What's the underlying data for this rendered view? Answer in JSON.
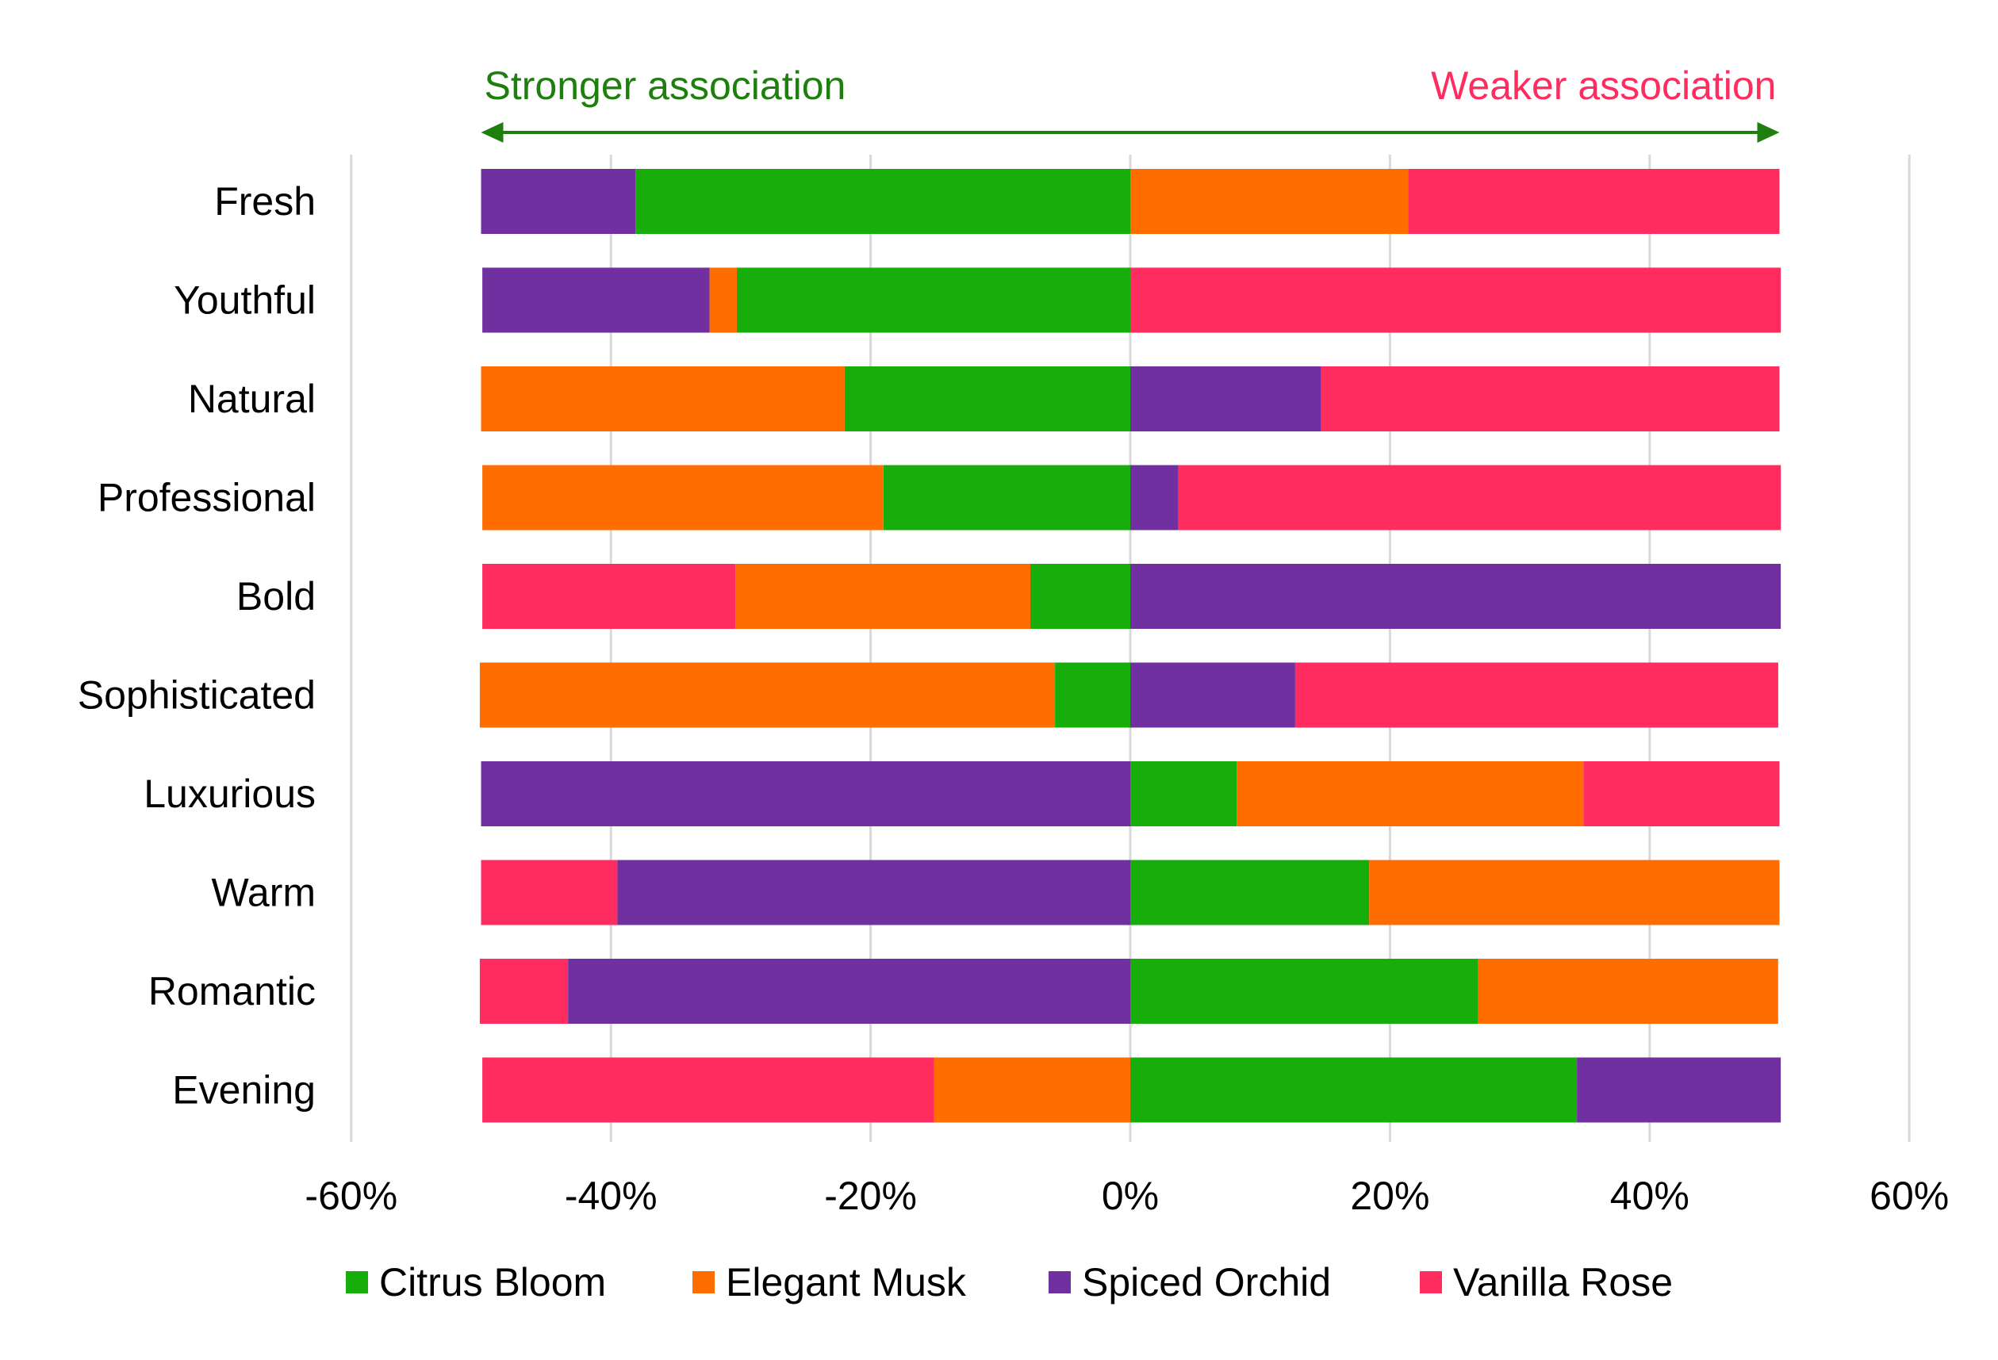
{
  "chart_data": {
    "type": "bar",
    "orientation": "horizontal",
    "stacking": "diverging",
    "categories": [
      "Fresh",
      "Youthful",
      "Natural",
      "Professional",
      "Bold",
      "Sophisticated",
      "Luxurious",
      "Warm",
      "Romantic",
      "Evening"
    ],
    "series": [
      {
        "name": "Citrus Bloom",
        "color": "#17AD0B"
      },
      {
        "name": "Elegant Musk",
        "color": "#FF6C00"
      },
      {
        "name": "Spiced Orchid",
        "color": "#7030A0"
      },
      {
        "name": "Vanilla Rose",
        "color": "#FF2C5F"
      }
    ],
    "bars": [
      {
        "category": "Fresh",
        "segments": [
          {
            "series": "Spiced Orchid",
            "start": -50.0,
            "end": -38.1
          },
          {
            "series": "Citrus Bloom",
            "start": -38.1,
            "end": 0
          },
          {
            "series": "Elegant Musk",
            "start": 0,
            "end": 21.4
          },
          {
            "series": "Vanilla Rose",
            "start": 21.4,
            "end": 50.0
          }
        ]
      },
      {
        "category": "Youthful",
        "segments": [
          {
            "series": "Spiced Orchid",
            "start": -49.9,
            "end": -32.4
          },
          {
            "series": "Elegant Musk",
            "start": -32.4,
            "end": -30.3
          },
          {
            "series": "Citrus Bloom",
            "start": -30.3,
            "end": 0
          },
          {
            "series": "Vanilla Rose",
            "start": 0,
            "end": 50.1
          }
        ]
      },
      {
        "category": "Natural",
        "segments": [
          {
            "series": "Elegant Musk",
            "start": -50.0,
            "end": -22.0
          },
          {
            "series": "Citrus Bloom",
            "start": -22.0,
            "end": 0
          },
          {
            "series": "Spiced Orchid",
            "start": 0,
            "end": 14.7
          },
          {
            "series": "Vanilla Rose",
            "start": 14.7,
            "end": 50.0
          }
        ]
      },
      {
        "category": "Professional",
        "segments": [
          {
            "series": "Elegant Musk",
            "start": -49.9,
            "end": -19.0
          },
          {
            "series": "Citrus Bloom",
            "start": -19.0,
            "end": 0
          },
          {
            "series": "Spiced Orchid",
            "start": 0,
            "end": 3.7
          },
          {
            "series": "Vanilla Rose",
            "start": 3.7,
            "end": 50.1
          }
        ]
      },
      {
        "category": "Bold",
        "segments": [
          {
            "series": "Vanilla Rose",
            "start": -49.9,
            "end": -30.4
          },
          {
            "series": "Elegant Musk",
            "start": -30.4,
            "end": -7.7
          },
          {
            "series": "Citrus Bloom",
            "start": -7.7,
            "end": 0
          },
          {
            "series": "Spiced Orchid",
            "start": 0,
            "end": 50.1
          }
        ]
      },
      {
        "category": "Sophisticated",
        "segments": [
          {
            "series": "Elegant Musk",
            "start": -50.1,
            "end": -5.8
          },
          {
            "series": "Citrus Bloom",
            "start": -5.8,
            "end": 0
          },
          {
            "series": "Spiced Orchid",
            "start": 0,
            "end": 12.7
          },
          {
            "series": "Vanilla Rose",
            "start": 12.7,
            "end": 49.9
          }
        ]
      },
      {
        "category": "Luxurious",
        "segments": [
          {
            "series": "Spiced Orchid",
            "start": -50.0,
            "end": 0
          },
          {
            "series": "Citrus Bloom",
            "start": 0,
            "end": 8.2
          },
          {
            "series": "Elegant Musk",
            "start": 8.2,
            "end": 34.9
          },
          {
            "series": "Vanilla Rose",
            "start": 34.9,
            "end": 50.0
          }
        ]
      },
      {
        "category": "Warm",
        "segments": [
          {
            "series": "Vanilla Rose",
            "start": -50.0,
            "end": -39.5
          },
          {
            "series": "Spiced Orchid",
            "start": -39.5,
            "end": 0
          },
          {
            "series": "Citrus Bloom",
            "start": 0,
            "end": 18.4
          },
          {
            "series": "Elegant Musk",
            "start": 18.4,
            "end": 50.0
          }
        ]
      },
      {
        "category": "Romantic",
        "segments": [
          {
            "series": "Vanilla Rose",
            "start": -50.1,
            "end": -43.3
          },
          {
            "series": "Spiced Orchid",
            "start": -43.3,
            "end": 0
          },
          {
            "series": "Citrus Bloom",
            "start": 0,
            "end": 26.8
          },
          {
            "series": "Elegant Musk",
            "start": 26.8,
            "end": 49.9
          }
        ]
      },
      {
        "category": "Evening",
        "segments": [
          {
            "series": "Vanilla Rose",
            "start": -49.9,
            "end": -15.1
          },
          {
            "series": "Elegant Musk",
            "start": -15.1,
            "end": 0
          },
          {
            "series": "Citrus Bloom",
            "start": 0,
            "end": 34.4
          },
          {
            "series": "Spiced Orchid",
            "start": 34.4,
            "end": 50.1
          }
        ]
      }
    ],
    "xlim": [
      -60,
      60
    ],
    "xticks": [
      -60,
      -40,
      -20,
      0,
      20,
      40,
      60
    ],
    "xtick_labels": [
      "-60%",
      "-40%",
      "-20%",
      "0%",
      "20%",
      "40%",
      "60%"
    ],
    "grid": "vertical",
    "legend_position": "bottom",
    "annotations": {
      "left_label": "Stronger association",
      "left_color": "#1E7F0E",
      "right_label": "Weaker association",
      "right_color": "#FF2C5F",
      "arrow_color": "#1E7F0E"
    }
  }
}
